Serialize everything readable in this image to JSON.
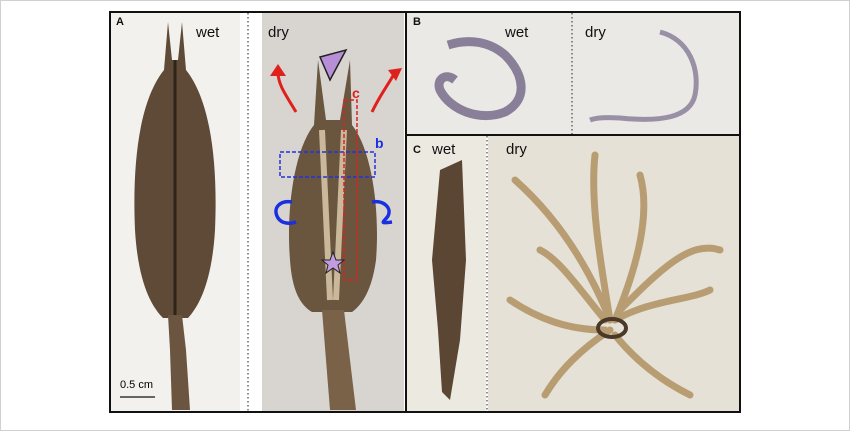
{
  "panel_a": {
    "label": "A",
    "left_label": "wet",
    "right_label": "dry",
    "scale_bar": "0.5 cm",
    "box_b": "b",
    "box_c": "c"
  },
  "panel_b": {
    "label": "B",
    "left_label": "wet",
    "right_label": "dry"
  },
  "panel_c": {
    "label": "C",
    "left_label": "wet",
    "right_label": "dry"
  }
}
